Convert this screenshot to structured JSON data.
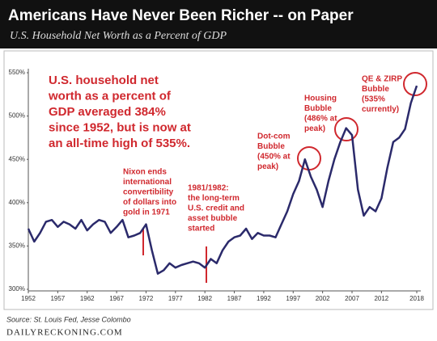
{
  "chart_data": {
    "type": "line",
    "title": "Americans Have Never Been Richer -- on Paper",
    "subtitle": "U.S. Household Net Worth as a Percent of GDP",
    "source": "Source: St. Louis Fed, Jesse Colombo",
    "brand": "DAILYRECKONING.COM",
    "x": [
      1952,
      1953,
      1954,
      1955,
      1956,
      1957,
      1958,
      1959,
      1960,
      1961,
      1962,
      1963,
      1964,
      1965,
      1966,
      1967,
      1968,
      1969,
      1970,
      1971,
      1972,
      1973,
      1974,
      1975,
      1976,
      1977,
      1978,
      1979,
      1980,
      1981,
      1982,
      1983,
      1984,
      1985,
      1986,
      1987,
      1988,
      1989,
      1990,
      1991,
      1992,
      1993,
      1994,
      1995,
      1996,
      1997,
      1998,
      1999,
      2000,
      2001,
      2002,
      2003,
      2004,
      2005,
      2006,
      2007,
      2008,
      2009,
      2010,
      2011,
      2012,
      2013,
      2014,
      2015,
      2016,
      2017,
      2018
    ],
    "series": [
      {
        "name": "Household net worth % of GDP",
        "color": "#2b2a6b",
        "values": [
          370,
          355,
          365,
          378,
          380,
          372,
          378,
          375,
          370,
          380,
          368,
          375,
          380,
          378,
          365,
          372,
          380,
          360,
          362,
          365,
          375,
          345,
          318,
          322,
          330,
          325,
          328,
          330,
          332,
          330,
          325,
          335,
          330,
          345,
          355,
          360,
          362,
          370,
          358,
          365,
          362,
          362,
          360,
          375,
          390,
          410,
          425,
          450,
          430,
          415,
          395,
          425,
          450,
          470,
          486,
          478,
          415,
          385,
          395,
          390,
          405,
          440,
          470,
          475,
          485,
          515,
          535
        ]
      }
    ],
    "xlim": [
      1952,
      2018
    ],
    "xticks": [
      1952,
      1957,
      1962,
      1967,
      1972,
      1977,
      1982,
      1987,
      1992,
      1997,
      2002,
      2007,
      2012,
      2018
    ],
    "ylim": [
      300,
      550
    ],
    "yticks": [
      {
        "value": 300,
        "label": "300%"
      },
      {
        "value": 350,
        "label": "350%"
      },
      {
        "value": 400,
        "label": "400%"
      },
      {
        "value": 450,
        "label": "450%"
      },
      {
        "value": 500,
        "label": "500%"
      },
      {
        "value": 550,
        "label": "550%"
      }
    ],
    "annotations": [
      {
        "lines": [
          "U.S. household net",
          "worth as a percent of",
          "GDP averaged 384%",
          "since 1952, but is now at",
          "an all-time high of 535%."
        ]
      },
      {
        "lines": [
          "Nixon ends",
          "international",
          "convertibility",
          "of dollars into",
          "gold in 1971"
        ]
      },
      {
        "lines": [
          "1981/1982:",
          "the long-term",
          "U.S. credit and",
          "asset bubble",
          "started"
        ]
      },
      {
        "lines": [
          "Dot-com",
          "Bubble",
          "(450% at",
          "peak)"
        ]
      },
      {
        "lines": [
          "Housing",
          "Bubble",
          "(486% at",
          "peak)"
        ]
      },
      {
        "lines": [
          "QE & ZIRP",
          "Bubble",
          "(535%",
          "currently)"
        ]
      }
    ]
  }
}
